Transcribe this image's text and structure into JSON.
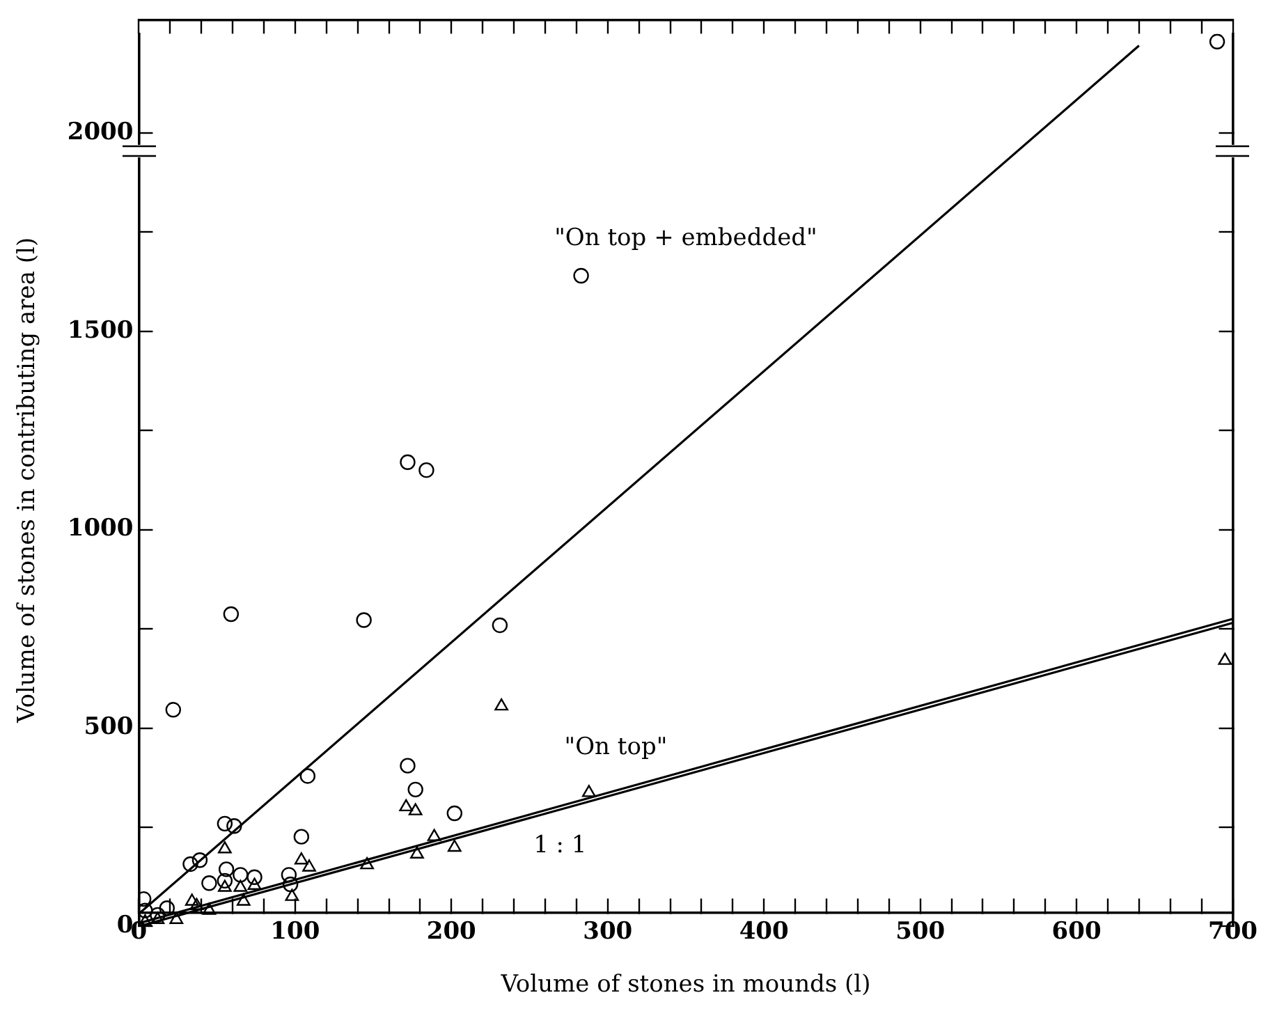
{
  "chart_data": {
    "type": "scatter",
    "xlabel": "Volume of stones in mounds (l)",
    "ylabel": "Volume of stones in contributing area (l)",
    "xlim": [
      0,
      700
    ],
    "ylim": [
      0,
      2250
    ],
    "xticks": [
      0,
      {
        "value": 20,
        "label": null
      },
      {
        "value": 40,
        "label": null
      },
      {
        "value": 60,
        "label": null
      },
      {
        "value": 80,
        "label": null
      },
      100,
      {
        "value": 120,
        "label": null
      },
      {
        "value": 140,
        "label": null
      },
      {
        "value": 160,
        "label": null
      },
      {
        "value": 180,
        "label": null
      },
      200,
      {
        "value": 220,
        "label": null
      },
      {
        "value": 240,
        "label": null
      },
      {
        "value": 260,
        "label": null
      },
      {
        "value": 280,
        "label": null
      },
      300,
      {
        "value": 320,
        "label": null
      },
      {
        "value": 340,
        "label": null
      },
      {
        "value": 360,
        "label": null
      },
      {
        "value": 380,
        "label": null
      },
      400,
      {
        "value": 420,
        "label": null
      },
      {
        "value": 440,
        "label": null
      },
      {
        "value": 460,
        "label": null
      },
      {
        "value": 480,
        "label": null
      },
      500,
      {
        "value": 520,
        "label": null
      },
      {
        "value": 540,
        "label": null
      },
      {
        "value": 560,
        "label": null
      },
      {
        "value": 580,
        "label": null
      },
      600,
      {
        "value": 620,
        "label": null
      },
      {
        "value": 640,
        "label": null
      },
      {
        "value": 660,
        "label": null
      },
      {
        "value": 680,
        "label": null
      },
      700
    ],
    "yticks": [
      0,
      {
        "value": 250,
        "label": null
      },
      500,
      {
        "value": 750,
        "label": null
      },
      1000,
      {
        "value": 1250,
        "label": null
      },
      1500,
      {
        "value": 1750,
        "label": null
      },
      2000
    ],
    "grid": false,
    "legend": false,
    "series": [
      {
        "marker": "circle",
        "color": "#000000",
        "x": [
          3,
          22,
          59,
          144,
          231,
          108,
          172,
          177,
          202,
          55,
          61,
          33,
          39,
          104,
          56,
          45,
          65,
          74,
          96,
          97,
          4,
          18,
          12,
          55,
          172,
          184,
          283,
          690
        ],
        "values": [
          69,
          546,
          787,
          772,
          759,
          379,
          405,
          345,
          285,
          259,
          253,
          157,
          167,
          226,
          144,
          109,
          130,
          124,
          130,
          106,
          40,
          46,
          29,
          115,
          1170,
          1150,
          1640,
          2230
        ]
      },
      {
        "marker": "triangle",
        "color": "#000000",
        "x": [
          55,
          104,
          109,
          146,
          171,
          177,
          178,
          189,
          202,
          232,
          288,
          34,
          37,
          45,
          67,
          65,
          74,
          55,
          98,
          12,
          4,
          24,
          695
        ],
        "values": [
          195,
          167,
          149,
          155,
          301,
          291,
          182,
          226,
          199,
          555,
          337,
          63,
          52,
          40,
          63,
          98,
          103,
          98,
          75,
          17,
          11,
          17,
          670
        ]
      },
      {
        "type": "line",
        "marker": "none",
        "color": "#000000",
        "x": [
          0,
          640
        ],
        "values": [
          32,
          2220
        ]
      },
      {
        "type": "line",
        "marker": "none",
        "color": "#000000",
        "x": [
          0,
          700
        ],
        "values": [
          8,
          775
        ]
      },
      {
        "type": "line",
        "marker": "none",
        "color": "#000000",
        "x": [
          0,
          700
        ],
        "values": [
          0,
          765
        ]
      }
    ],
    "annotations": [
      "\"On top + embedded\"",
      "\"On top\"",
      "1 : 1"
    ]
  }
}
